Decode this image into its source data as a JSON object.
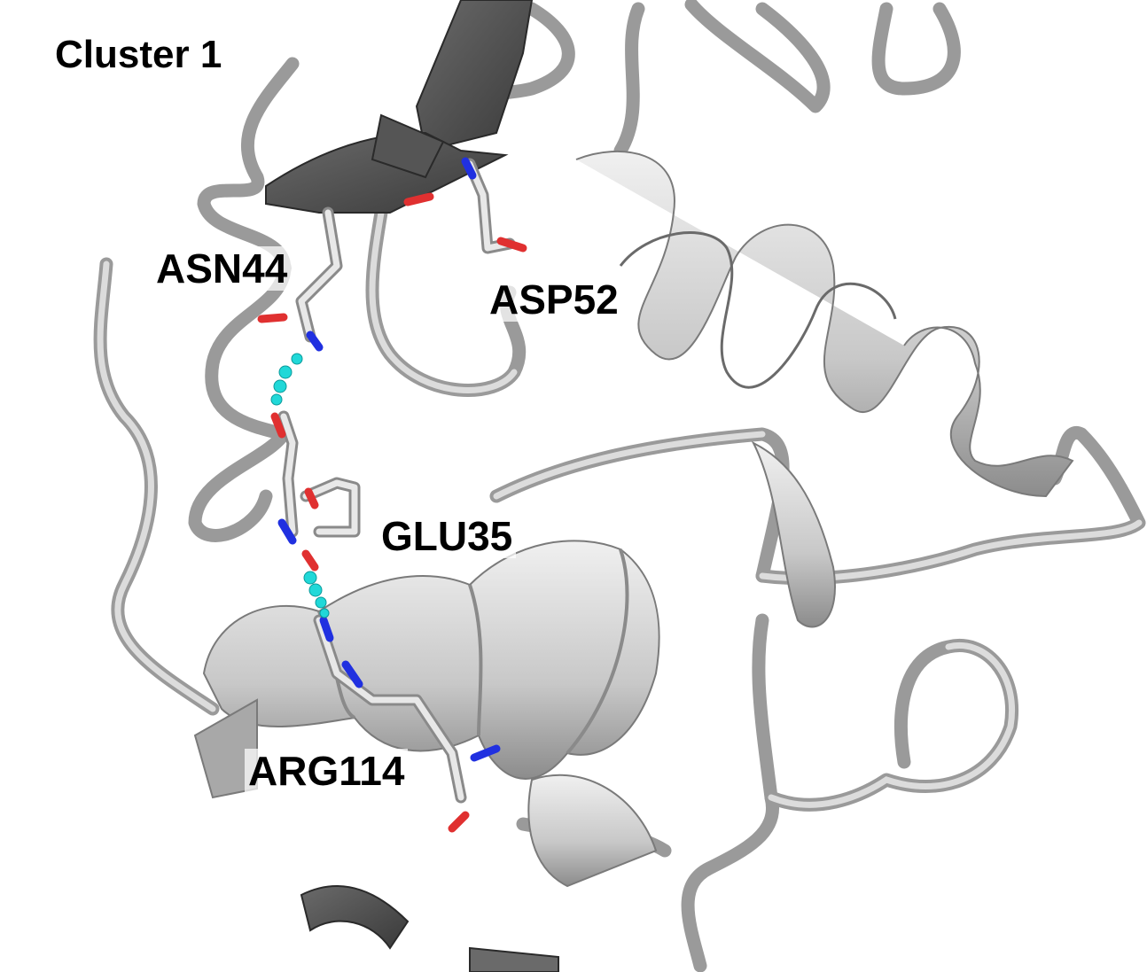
{
  "title": "Cluster 1",
  "residues": [
    "ASN44",
    "ASP52",
    "GLU35",
    "ARG114"
  ],
  "colors": {
    "background": "#ffffff",
    "ribbon": "#cfcfcf",
    "ribbon_edge": "#8a8a8a",
    "sheet": "#4a4a4a",
    "oxygen": "#e03030",
    "nitrogen": "#2030e0",
    "hbond": "#20d8d8"
  }
}
